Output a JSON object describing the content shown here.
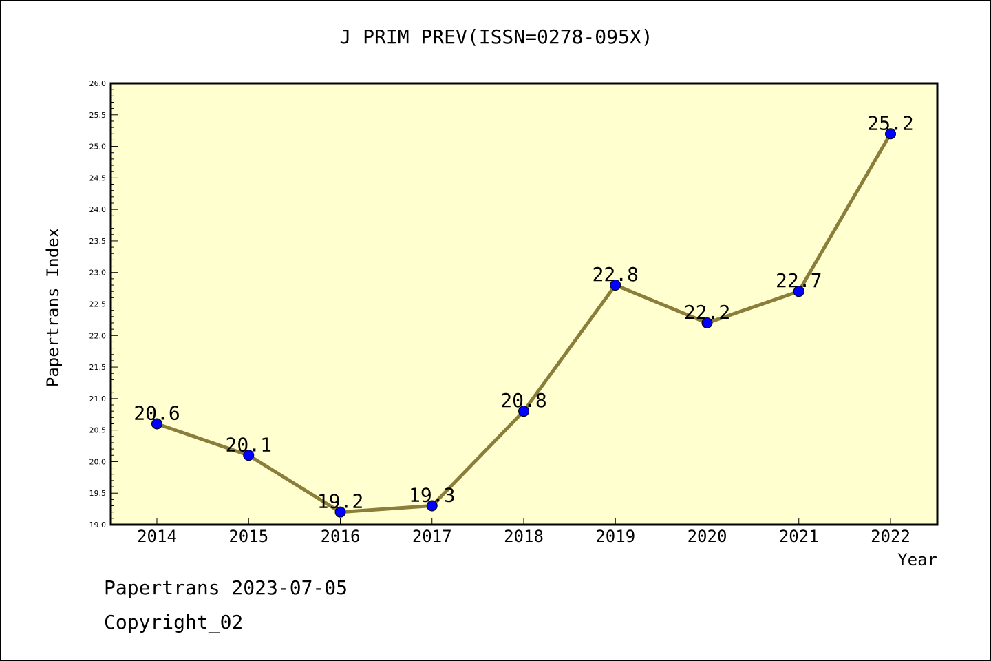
{
  "footer": {
    "date_line": "Papertrans 2023-07-05",
    "copyright": "Copyright_02"
  },
  "colors": {
    "plot_background": "#FFFFD0",
    "line": "#8B7D3A",
    "marker": "#0000FF",
    "axes": "#000000"
  },
  "chart_data": {
    "type": "line",
    "title": "J PRIM PREV(ISSN=0278-095X)",
    "xlabel": "Year",
    "ylabel": "Papertrans Index",
    "categories": [
      "2014",
      "2015",
      "2016",
      "2017",
      "2018",
      "2019",
      "2020",
      "2021",
      "2022"
    ],
    "series": [
      {
        "values": [
          20.6,
          20.1,
          19.2,
          19.3,
          20.8,
          22.8,
          22.2,
          22.7,
          25.2
        ],
        "data_labels": [
          "20.6",
          "20.1",
          "19.2",
          "19.3",
          "20.8",
          "22.8",
          "22.2",
          "22.7",
          "25.2"
        ]
      }
    ],
    "ylim": [
      19.0,
      26.0
    ],
    "yticks": [
      "19.0",
      "19.5",
      "20.0",
      "20.5",
      "21.0",
      "21.5",
      "22.0",
      "22.5",
      "23.0",
      "23.5",
      "24.0",
      "24.5",
      "25.0",
      "25.5",
      "26.0"
    ],
    "grid": false,
    "legend": "none"
  }
}
